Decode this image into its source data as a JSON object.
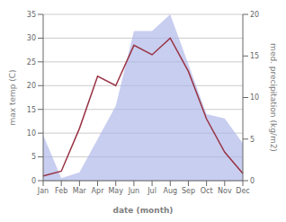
{
  "chart_data": {
    "type": "line",
    "xlabel": "date (month)",
    "ylabel": "max temp (C)",
    "y2label": "med. precipitation (kg/m2)",
    "categories": [
      "Jan",
      "Feb",
      "Mar",
      "Apr",
      "May",
      "Jun",
      "Jul",
      "Aug",
      "Sep",
      "Oct",
      "Nov",
      "Dec"
    ],
    "series": [
      {
        "type": "area",
        "axis": "y2",
        "color": "#aab4e8",
        "values": [
          5.5,
          0.3,
          1.0,
          5.0,
          9.0,
          18.0,
          18.0,
          20.0,
          14.0,
          8.0,
          7.5,
          4.5
        ]
      },
      {
        "type": "line",
        "color": "#993344",
        "values": [
          1.0,
          2.0,
          11.0,
          22.0,
          20.0,
          28.5,
          26.5,
          30.0,
          23.0,
          13.0,
          6.0,
          1.5
        ]
      }
    ],
    "ylim": [
      0,
      35
    ],
    "yticks": [
      0,
      5,
      10,
      15,
      20,
      25,
      30,
      35
    ],
    "y2lim": [
      0,
      20
    ],
    "y2ticks": [
      0,
      5,
      10,
      15,
      20
    ],
    "grid": "y"
  }
}
